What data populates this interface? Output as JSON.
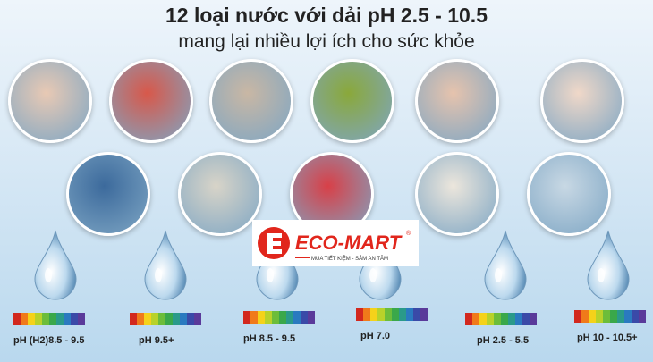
{
  "header": {
    "title": "12 loại nước với dải pH 2.5 - 10.5",
    "subtitle": "mang lại nhiều lợi ích cho sức khỏe"
  },
  "images_row1": [
    "woman-drinking-water",
    "stomach",
    "stressed-man",
    "herbal-tea",
    "baby-feeding",
    "face-skincare"
  ],
  "images_row2": [
    "athlete-drinking",
    "pills",
    "strawberries-washing",
    "rice-washing",
    "hand-washing"
  ],
  "logo": {
    "brand": "ECO-MART",
    "tagline": "MUA TIẾT KIỆM - SẮM AN TÂM",
    "color": "#e1261c"
  },
  "ph_levels": [
    {
      "label": "pH (H2)8.5 - 9.5"
    },
    {
      "label": "pH 9.5+"
    },
    {
      "label": "pH 8.5 - 9.5"
    },
    {
      "label": "pH 7.0"
    },
    {
      "label": "pH 2.5 - 5.5"
    },
    {
      "label": "pH 10 - 10.5+"
    }
  ],
  "spectrum_colors": [
    "#d2281e",
    "#f07a1a",
    "#f5d21a",
    "#b8d22a",
    "#6cbd3a",
    "#3aa84a",
    "#2a9a8a",
    "#2a7ac0",
    "#3a4aa8",
    "#5a3a9a"
  ]
}
